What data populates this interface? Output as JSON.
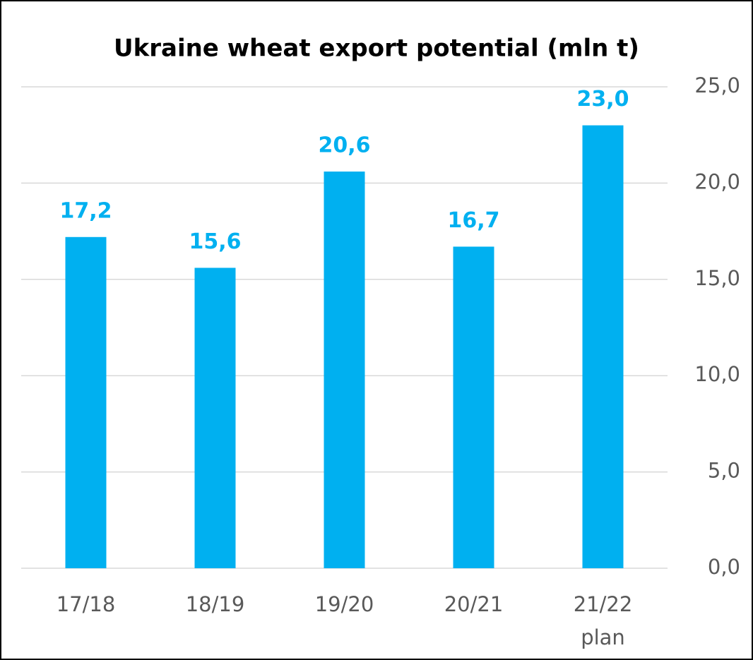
{
  "chart_data": {
    "type": "bar",
    "title": "Ukraine wheat export potential (mln t)",
    "categories": [
      "17/18",
      "18/19",
      "19/20",
      "20/21",
      "21/22 plan"
    ],
    "values": [
      17.2,
      15.6,
      20.6,
      16.7,
      23.0
    ],
    "value_labels": [
      "17,2",
      "15,6",
      "20,6",
      "16,7",
      "23,0"
    ],
    "color": "#00b0f0",
    "ylim": [
      0,
      25
    ],
    "yticks": [
      {
        "value": 0,
        "label": "0,0"
      },
      {
        "value": 5,
        "label": "5,0"
      },
      {
        "value": 10,
        "label": "10,0"
      },
      {
        "value": 15,
        "label": "15,0"
      },
      {
        "value": 20,
        "label": "20,0"
      },
      {
        "value": 25,
        "label": "25,0"
      }
    ],
    "grid": true,
    "y_axis_side": "right"
  }
}
